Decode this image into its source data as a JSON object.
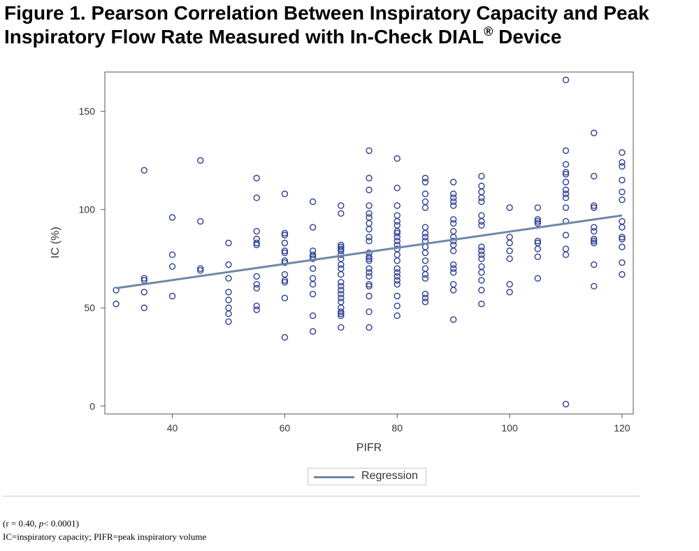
{
  "figure": {
    "title_line1": "Figure 1. Pearson Correlation Between Inspiratory Capacity and Peak",
    "title_line2": "Inspiratory Flow Rate Measured with In-Check DIAL",
    "title_sup": "®",
    "title_end": " Device"
  },
  "footnote": {
    "stat_open": "(r = 0.40, ",
    "stat_p": "p",
    "stat_close": "< 0.0001)",
    "abbrev": "IC=inspiratory capacity; PIFR=peak inspiratory volume"
  },
  "colors": {
    "marker": "#2b3f94",
    "regression": "#6f87a8",
    "axis": "#555555",
    "text": "#333333"
  },
  "chart_data": {
    "type": "scatter",
    "title": "",
    "xlabel": "PIFR",
    "ylabel": "IC (%)",
    "xlim": [
      28,
      122
    ],
    "ylim": [
      -4,
      170
    ],
    "xticks": [
      40,
      60,
      80,
      100,
      120
    ],
    "yticks": [
      0,
      50,
      100,
      150
    ],
    "grid": false,
    "legend": {
      "position": "bottom-center",
      "entries": [
        "Regression"
      ]
    },
    "series": [
      {
        "type": "scatter",
        "points": [
          [
            30,
            59
          ],
          [
            30,
            52
          ],
          [
            35,
            120
          ],
          [
            35,
            65
          ],
          [
            35,
            64
          ],
          [
            35,
            58
          ],
          [
            35,
            50
          ],
          [
            40,
            96
          ],
          [
            40,
            77
          ],
          [
            40,
            71
          ],
          [
            40,
            56
          ],
          [
            45,
            125
          ],
          [
            45,
            94
          ],
          [
            45,
            70
          ],
          [
            45,
            69
          ],
          [
            50,
            83
          ],
          [
            50,
            72
          ],
          [
            50,
            65
          ],
          [
            50,
            58
          ],
          [
            50,
            54
          ],
          [
            50,
            50
          ],
          [
            50,
            47
          ],
          [
            50,
            43
          ],
          [
            55,
            116
          ],
          [
            55,
            106
          ],
          [
            55,
            89
          ],
          [
            55,
            85
          ],
          [
            55,
            83
          ],
          [
            55,
            82
          ],
          [
            55,
            66
          ],
          [
            55,
            62
          ],
          [
            55,
            60
          ],
          [
            55,
            51
          ],
          [
            55,
            49
          ],
          [
            60,
            108
          ],
          [
            60,
            88
          ],
          [
            60,
            87
          ],
          [
            60,
            83
          ],
          [
            60,
            79
          ],
          [
            60,
            78
          ],
          [
            60,
            74
          ],
          [
            60,
            73
          ],
          [
            60,
            67
          ],
          [
            60,
            64
          ],
          [
            60,
            63
          ],
          [
            60,
            55
          ],
          [
            60,
            35
          ],
          [
            65,
            104
          ],
          [
            65,
            91
          ],
          [
            65,
            79
          ],
          [
            65,
            77
          ],
          [
            65,
            76
          ],
          [
            65,
            75
          ],
          [
            65,
            70
          ],
          [
            65,
            65
          ],
          [
            65,
            62
          ],
          [
            65,
            57
          ],
          [
            65,
            46
          ],
          [
            65,
            38
          ],
          [
            70,
            102
          ],
          [
            70,
            98
          ],
          [
            70,
            82
          ],
          [
            70,
            81
          ],
          [
            70,
            80
          ],
          [
            70,
            79
          ],
          [
            70,
            77
          ],
          [
            70,
            75
          ],
          [
            70,
            72
          ],
          [
            70,
            70
          ],
          [
            70,
            67
          ],
          [
            70,
            63
          ],
          [
            70,
            61
          ],
          [
            70,
            59
          ],
          [
            70,
            57
          ],
          [
            70,
            55
          ],
          [
            70,
            53
          ],
          [
            70,
            50
          ],
          [
            70,
            48
          ],
          [
            70,
            47
          ],
          [
            70,
            46
          ],
          [
            70,
            40
          ],
          [
            75,
            130
          ],
          [
            75,
            116
          ],
          [
            75,
            110
          ],
          [
            75,
            102
          ],
          [
            75,
            98
          ],
          [
            75,
            96
          ],
          [
            75,
            93
          ],
          [
            75,
            90
          ],
          [
            75,
            86
          ],
          [
            75,
            84
          ],
          [
            75,
            78
          ],
          [
            75,
            76
          ],
          [
            75,
            75
          ],
          [
            75,
            74
          ],
          [
            75,
            70
          ],
          [
            75,
            68
          ],
          [
            75,
            66
          ],
          [
            75,
            62
          ],
          [
            75,
            61
          ],
          [
            75,
            56
          ],
          [
            75,
            48
          ],
          [
            75,
            40
          ],
          [
            80,
            126
          ],
          [
            80,
            111
          ],
          [
            80,
            102
          ],
          [
            80,
            97
          ],
          [
            80,
            94
          ],
          [
            80,
            92
          ],
          [
            80,
            89
          ],
          [
            80,
            88
          ],
          [
            80,
            86
          ],
          [
            80,
            84
          ],
          [
            80,
            82
          ],
          [
            80,
            80
          ],
          [
            80,
            77
          ],
          [
            80,
            74
          ],
          [
            80,
            70
          ],
          [
            80,
            68
          ],
          [
            80,
            66
          ],
          [
            80,
            64
          ],
          [
            80,
            62
          ],
          [
            80,
            56
          ],
          [
            80,
            51
          ],
          [
            80,
            46
          ],
          [
            85,
            116
          ],
          [
            85,
            114
          ],
          [
            85,
            108
          ],
          [
            85,
            104
          ],
          [
            85,
            101
          ],
          [
            85,
            91
          ],
          [
            85,
            88
          ],
          [
            85,
            86
          ],
          [
            85,
            84
          ],
          [
            85,
            81
          ],
          [
            85,
            78
          ],
          [
            85,
            74
          ],
          [
            85,
            70
          ],
          [
            85,
            67
          ],
          [
            85,
            65
          ],
          [
            85,
            57
          ],
          [
            85,
            55
          ],
          [
            85,
            53
          ],
          [
            90,
            114
          ],
          [
            90,
            108
          ],
          [
            90,
            106
          ],
          [
            90,
            104
          ],
          [
            90,
            102
          ],
          [
            90,
            95
          ],
          [
            90,
            93
          ],
          [
            90,
            89
          ],
          [
            90,
            86
          ],
          [
            90,
            84
          ],
          [
            90,
            82
          ],
          [
            90,
            79
          ],
          [
            90,
            72
          ],
          [
            90,
            70
          ],
          [
            90,
            68
          ],
          [
            90,
            62
          ],
          [
            90,
            59
          ],
          [
            90,
            44
          ],
          [
            95,
            117
          ],
          [
            95,
            112
          ],
          [
            95,
            109
          ],
          [
            95,
            106
          ],
          [
            95,
            104
          ],
          [
            95,
            97
          ],
          [
            95,
            94
          ],
          [
            95,
            92
          ],
          [
            95,
            81
          ],
          [
            95,
            79
          ],
          [
            95,
            77
          ],
          [
            95,
            75
          ],
          [
            95,
            71
          ],
          [
            95,
            68
          ],
          [
            95,
            64
          ],
          [
            95,
            59
          ],
          [
            95,
            52
          ],
          [
            100,
            101
          ],
          [
            100,
            86
          ],
          [
            100,
            83
          ],
          [
            100,
            79
          ],
          [
            100,
            75
          ],
          [
            100,
            62
          ],
          [
            100,
            58
          ],
          [
            105,
            101
          ],
          [
            105,
            95
          ],
          [
            105,
            94
          ],
          [
            105,
            93
          ],
          [
            105,
            84
          ],
          [
            105,
            83
          ],
          [
            105,
            80
          ],
          [
            105,
            76
          ],
          [
            105,
            65
          ],
          [
            110,
            166
          ],
          [
            110,
            130
          ],
          [
            110,
            123
          ],
          [
            110,
            119
          ],
          [
            110,
            118
          ],
          [
            110,
            114
          ],
          [
            110,
            110
          ],
          [
            110,
            108
          ],
          [
            110,
            106
          ],
          [
            110,
            101
          ],
          [
            110,
            94
          ],
          [
            110,
            87
          ],
          [
            110,
            80
          ],
          [
            110,
            77
          ],
          [
            110,
            1
          ],
          [
            115,
            139
          ],
          [
            115,
            117
          ],
          [
            115,
            102
          ],
          [
            115,
            101
          ],
          [
            115,
            91
          ],
          [
            115,
            89
          ],
          [
            115,
            85
          ],
          [
            115,
            84
          ],
          [
            115,
            83
          ],
          [
            115,
            72
          ],
          [
            115,
            61
          ],
          [
            120,
            129
          ],
          [
            120,
            124
          ],
          [
            120,
            122
          ],
          [
            120,
            115
          ],
          [
            120,
            109
          ],
          [
            120,
            105
          ],
          [
            120,
            94
          ],
          [
            120,
            91
          ],
          [
            120,
            86
          ],
          [
            120,
            85
          ],
          [
            120,
            81
          ],
          [
            120,
            73
          ],
          [
            120,
            67
          ]
        ]
      },
      {
        "name": "Regression",
        "type": "line",
        "x": [
          30,
          120
        ],
        "y": [
          60,
          97
        ]
      }
    ]
  }
}
